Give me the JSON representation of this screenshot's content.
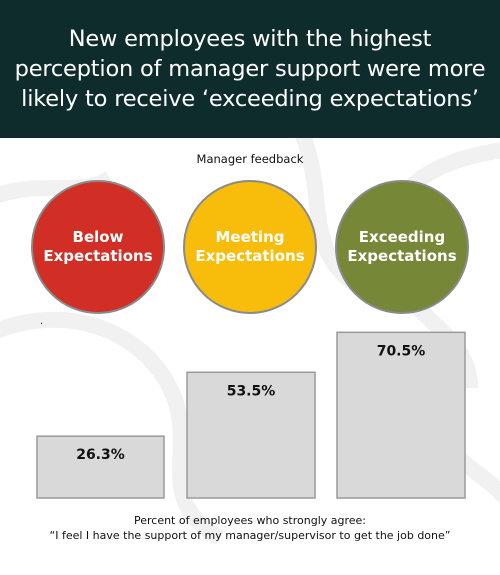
{
  "header": {
    "title_lines": [
      "New employees with the highest",
      "perception of manager support were more",
      "likely to receive ‘exceeding expectations’"
    ]
  },
  "legend": {
    "title": "Manager feedback",
    "items": [
      {
        "line1": "Below",
        "line2": "Expectations",
        "color": "#d12f26"
      },
      {
        "line1": "Meeting",
        "line2": "Expectations",
        "color": "#f8bd0a"
      },
      {
        "line1": "Exceeding",
        "line2": "Expectations",
        "color": "#768737"
      }
    ]
  },
  "footnote": {
    "line1": "Percent of employees who strongly agree:",
    "line2": "“I feel I have the support of my manager/supervisor to get the job done”"
  },
  "stray_mark": ".",
  "chart_data": {
    "type": "bar",
    "categories": [
      "Below Expectations",
      "Meeting Expectations",
      "Exceeding Expectations"
    ],
    "values": [
      26.3,
      53.5,
      70.5
    ],
    "value_labels": [
      "26.3%",
      "53.5%",
      "70.5%"
    ],
    "ylim": [
      0,
      100
    ],
    "bar_color": "#d9d9d9",
    "grid": false
  }
}
